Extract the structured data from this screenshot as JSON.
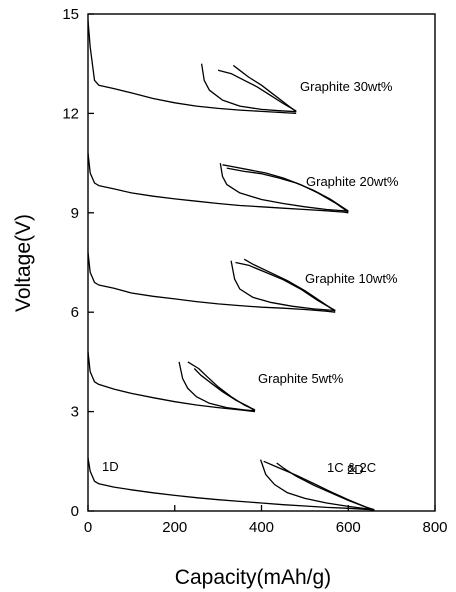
{
  "chart_data": {
    "type": "line",
    "xlabel": "Capacity(mAh/g)",
    "ylabel": "Voltage(V)",
    "xlim": [
      0,
      800
    ],
    "ylim": [
      0,
      15
    ],
    "xticks": [
      0,
      200,
      400,
      600,
      800
    ],
    "yticks": [
      0,
      3,
      6,
      9,
      12,
      15
    ],
    "grid": false,
    "annotations": [
      "Graphite 30wt%",
      "Graphite 20wt%",
      "Graphite 10wt%",
      "Graphite 5wt%",
      "1D",
      "2D",
      "1C & 2C"
    ],
    "series": [
      {
        "discharge_1": [
          [
            0,
            1.6
          ],
          [
            5,
            1.2
          ],
          [
            15,
            0.9
          ],
          [
            25,
            0.82
          ],
          [
            60,
            0.72
          ],
          [
            100,
            0.64
          ],
          [
            150,
            0.55
          ],
          [
            200,
            0.47
          ],
          [
            250,
            0.4
          ],
          [
            300,
            0.34
          ],
          [
            350,
            0.29
          ],
          [
            400,
            0.24
          ],
          [
            450,
            0.19
          ],
          [
            500,
            0.15
          ],
          [
            550,
            0.11
          ],
          [
            600,
            0.08
          ],
          [
            640,
            0.05
          ],
          [
            660,
            0.03
          ]
        ],
        "charge_1": [
          [
            660,
            0.03
          ],
          [
            640,
            0.12
          ],
          [
            600,
            0.32
          ],
          [
            560,
            0.55
          ],
          [
            520,
            0.78
          ],
          [
            480,
            1.05
          ],
          [
            450,
            1.3
          ],
          [
            435,
            1.45
          ]
        ],
        "discharge_2": [
          [
            398,
            1.55
          ],
          [
            410,
            1.1
          ],
          [
            430,
            0.8
          ],
          [
            460,
            0.55
          ],
          [
            500,
            0.38
          ],
          [
            550,
            0.24
          ],
          [
            600,
            0.14
          ],
          [
            640,
            0.07
          ],
          [
            660,
            0.04
          ]
        ],
        "charge_2": [
          [
            660,
            0.04
          ],
          [
            640,
            0.12
          ],
          [
            600,
            0.34
          ],
          [
            560,
            0.58
          ],
          [
            520,
            0.83
          ],
          [
            480,
            1.08
          ],
          [
            440,
            1.3
          ],
          [
            405,
            1.5
          ]
        ]
      },
      {
        "discharge_1": [
          [
            0,
            4.8
          ],
          [
            5,
            4.2
          ],
          [
            15,
            3.9
          ],
          [
            25,
            3.82
          ],
          [
            60,
            3.68
          ],
          [
            100,
            3.55
          ],
          [
            150,
            3.42
          ],
          [
            200,
            3.3
          ],
          [
            250,
            3.2
          ],
          [
            300,
            3.12
          ],
          [
            350,
            3.05
          ],
          [
            385,
            3.0
          ]
        ],
        "charge_1": [
          [
            385,
            3.02
          ],
          [
            370,
            3.15
          ],
          [
            340,
            3.35
          ],
          [
            310,
            3.6
          ],
          [
            280,
            3.9
          ],
          [
            260,
            4.1
          ],
          [
            245,
            4.3
          ]
        ],
        "discharge_2": [
          [
            210,
            4.5
          ],
          [
            218,
            4.0
          ],
          [
            230,
            3.7
          ],
          [
            250,
            3.45
          ],
          [
            280,
            3.25
          ],
          [
            320,
            3.12
          ],
          [
            360,
            3.05
          ],
          [
            385,
            3.02
          ]
        ],
        "charge_2": [
          [
            385,
            3.05
          ],
          [
            360,
            3.2
          ],
          [
            330,
            3.45
          ],
          [
            300,
            3.75
          ],
          [
            275,
            4.05
          ],
          [
            255,
            4.3
          ],
          [
            230,
            4.5
          ]
        ]
      },
      {
        "discharge_1": [
          [
            0,
            7.8
          ],
          [
            5,
            7.2
          ],
          [
            15,
            6.9
          ],
          [
            25,
            6.82
          ],
          [
            60,
            6.72
          ],
          [
            100,
            6.58
          ],
          [
            150,
            6.48
          ],
          [
            200,
            6.4
          ],
          [
            250,
            6.32
          ],
          [
            300,
            6.25
          ],
          [
            350,
            6.2
          ],
          [
            400,
            6.15
          ],
          [
            450,
            6.12
          ],
          [
            500,
            6.08
          ],
          [
            550,
            6.03
          ],
          [
            570,
            6.0
          ]
        ],
        "charge_1": [
          [
            570,
            6.03
          ],
          [
            540,
            6.3
          ],
          [
            500,
            6.65
          ],
          [
            460,
            6.95
          ],
          [
            420,
            7.2
          ],
          [
            380,
            7.45
          ],
          [
            360,
            7.6
          ]
        ],
        "discharge_2": [
          [
            330,
            7.55
          ],
          [
            338,
            7.0
          ],
          [
            350,
            6.7
          ],
          [
            380,
            6.45
          ],
          [
            420,
            6.3
          ],
          [
            470,
            6.18
          ],
          [
            520,
            6.1
          ],
          [
            570,
            6.05
          ]
        ],
        "charge_2": [
          [
            570,
            6.05
          ],
          [
            530,
            6.35
          ],
          [
            490,
            6.7
          ],
          [
            450,
            6.98
          ],
          [
            410,
            7.2
          ],
          [
            370,
            7.42
          ],
          [
            340,
            7.5
          ]
        ]
      },
      {
        "discharge_1": [
          [
            0,
            10.8
          ],
          [
            5,
            10.2
          ],
          [
            15,
            9.9
          ],
          [
            25,
            9.82
          ],
          [
            60,
            9.72
          ],
          [
            100,
            9.6
          ],
          [
            150,
            9.5
          ],
          [
            200,
            9.42
          ],
          [
            250,
            9.35
          ],
          [
            300,
            9.28
          ],
          [
            350,
            9.22
          ],
          [
            400,
            9.18
          ],
          [
            450,
            9.14
          ],
          [
            500,
            9.1
          ],
          [
            550,
            9.06
          ],
          [
            590,
            9.02
          ],
          [
            600,
            9.0
          ]
        ],
        "charge_1": [
          [
            600,
            9.02
          ],
          [
            570,
            9.3
          ],
          [
            530,
            9.6
          ],
          [
            490,
            9.85
          ],
          [
            450,
            10.05
          ],
          [
            410,
            10.2
          ],
          [
            370,
            10.3
          ],
          [
            330,
            10.4
          ],
          [
            310,
            10.45
          ]
        ],
        "discharge_2": [
          [
            305,
            10.5
          ],
          [
            310,
            10.1
          ],
          [
            320,
            9.85
          ],
          [
            350,
            9.6
          ],
          [
            400,
            9.4
          ],
          [
            450,
            9.28
          ],
          [
            500,
            9.18
          ],
          [
            550,
            9.1
          ],
          [
            600,
            9.05
          ]
        ],
        "charge_2": [
          [
            600,
            9.05
          ],
          [
            560,
            9.4
          ],
          [
            520,
            9.68
          ],
          [
            480,
            9.9
          ],
          [
            440,
            10.05
          ],
          [
            400,
            10.18
          ],
          [
            360,
            10.25
          ],
          [
            320,
            10.35
          ]
        ]
      },
      {
        "discharge_1": [
          [
            0,
            14.8
          ],
          [
            5,
            14.0
          ],
          [
            15,
            13.0
          ],
          [
            25,
            12.85
          ],
          [
            60,
            12.75
          ],
          [
            100,
            12.62
          ],
          [
            150,
            12.45
          ],
          [
            200,
            12.32
          ],
          [
            250,
            12.22
          ],
          [
            300,
            12.15
          ],
          [
            350,
            12.1
          ],
          [
            400,
            12.06
          ],
          [
            440,
            12.03
          ],
          [
            480,
            12.0
          ]
        ],
        "charge_1": [
          [
            480,
            12.05
          ],
          [
            460,
            12.25
          ],
          [
            430,
            12.55
          ],
          [
            400,
            12.85
          ],
          [
            370,
            13.1
          ],
          [
            345,
            13.35
          ],
          [
            335,
            13.45
          ]
        ],
        "discharge_2": [
          [
            262,
            13.5
          ],
          [
            268,
            13.0
          ],
          [
            280,
            12.7
          ],
          [
            310,
            12.4
          ],
          [
            350,
            12.22
          ],
          [
            400,
            12.12
          ],
          [
            440,
            12.08
          ],
          [
            480,
            12.05
          ]
        ],
        "charge_2": [
          [
            480,
            12.07
          ],
          [
            450,
            12.3
          ],
          [
            420,
            12.55
          ],
          [
            390,
            12.8
          ],
          [
            360,
            13.0
          ],
          [
            330,
            13.2
          ],
          [
            300,
            13.3
          ]
        ]
      }
    ]
  }
}
